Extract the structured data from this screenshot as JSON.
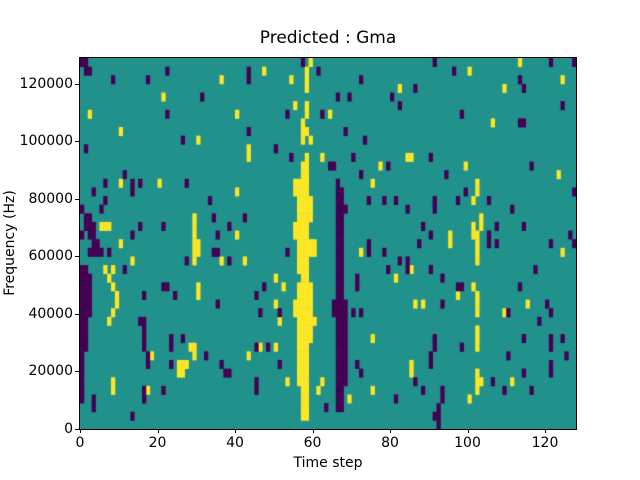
{
  "title": "Predicted : Gma",
  "axes": {
    "xlabel": "Time step",
    "ylabel": "Frequency (Hz)"
  },
  "chart_data": {
    "type": "heatmap",
    "title": "Predicted : Gma",
    "xlabel": "Time step",
    "ylabel": "Frequency (Hz)",
    "grid": {
      "cols": 128,
      "rows": 43
    },
    "x_range": [
      0,
      128
    ],
    "y_range": [
      0,
      129000
    ],
    "x_ticks": [
      0,
      20,
      40,
      60,
      80,
      100,
      120
    ],
    "y_ticks": [
      0,
      20000,
      40000,
      60000,
      80000,
      100000,
      120000
    ],
    "legend": "none",
    "colors": {
      "background": "#21918c",
      "low": "#440154",
      "high": "#fde725"
    },
    "value_legend": "cells are [time_step_col, freq_bin_row] with row 0 at 0 Hz; each row ≈ 3000 Hz",
    "runs": {
      "yellow": [
        [
          55,
          13,
          14
        ],
        [
          55,
          22,
          23
        ],
        [
          55,
          27,
          28
        ],
        [
          56,
          5,
          16
        ],
        [
          56,
          18,
          28
        ],
        [
          57,
          1,
          30
        ],
        [
          57,
          33,
          35
        ],
        [
          58,
          1,
          31
        ],
        [
          59,
          10,
          16
        ],
        [
          59,
          20,
          21
        ],
        [
          59,
          24,
          26
        ],
        [
          60,
          20,
          21
        ],
        [
          29,
          19,
          24
        ],
        [
          102,
          4,
          6
        ],
        [
          102,
          9,
          11
        ],
        [
          102,
          13,
          15
        ],
        [
          102,
          19,
          22
        ],
        [
          102,
          27,
          28
        ]
      ],
      "purple": [
        [
          0,
          3,
          18
        ],
        [
          1,
          9,
          18
        ],
        [
          2,
          13,
          17
        ],
        [
          3,
          20,
          23
        ],
        [
          4,
          20,
          21
        ],
        [
          66,
          2,
          28
        ],
        [
          67,
          2,
          27
        ],
        [
          68,
          5,
          14
        ]
      ]
    },
    "cells": {
      "yellow": [
        [
          2,
          36
        ],
        [
          5,
          23
        ],
        [
          6,
          23
        ],
        [
          7,
          23
        ],
        [
          6,
          18
        ],
        [
          8,
          18
        ],
        [
          7,
          17
        ],
        [
          8,
          16
        ],
        [
          9,
          15
        ],
        [
          9,
          14
        ],
        [
          8,
          13
        ],
        [
          7,
          12
        ],
        [
          8,
          5
        ],
        [
          8,
          4
        ],
        [
          10,
          34
        ],
        [
          10,
          28
        ],
        [
          10,
          21
        ],
        [
          13,
          19
        ],
        [
          17,
          4
        ],
        [
          18,
          8
        ],
        [
          20,
          28
        ],
        [
          21,
          38
        ],
        [
          25,
          6
        ],
        [
          25,
          7
        ],
        [
          26,
          6
        ],
        [
          26,
          7
        ],
        [
          27,
          7
        ],
        [
          28,
          9
        ],
        [
          29,
          9
        ],
        [
          29,
          8
        ],
        [
          30,
          15
        ],
        [
          30,
          16
        ],
        [
          30,
          20
        ],
        [
          30,
          21
        ],
        [
          30,
          33
        ],
        [
          36,
          40
        ],
        [
          36,
          19
        ],
        [
          40,
          36
        ],
        [
          40,
          27
        ],
        [
          40,
          22
        ],
        [
          42,
          19
        ],
        [
          43,
          8
        ],
        [
          43,
          32
        ],
        [
          43,
          31
        ],
        [
          46,
          9
        ],
        [
          47,
          41
        ],
        [
          50,
          17
        ],
        [
          50,
          14
        ],
        [
          50,
          9
        ],
        [
          51,
          12
        ],
        [
          52,
          16
        ],
        [
          53,
          5
        ],
        [
          54,
          40
        ],
        [
          55,
          37
        ],
        [
          58,
          34
        ],
        [
          58,
          36
        ],
        [
          58,
          37
        ],
        [
          58,
          39
        ],
        [
          58,
          40
        ],
        [
          58,
          41
        ],
        [
          59,
          42
        ],
        [
          59,
          33
        ],
        [
          60,
          12
        ],
        [
          61,
          4
        ],
        [
          62,
          5
        ],
        [
          62,
          31
        ],
        [
          64,
          36
        ],
        [
          69,
          3
        ],
        [
          72,
          20
        ],
        [
          75,
          28
        ],
        [
          75,
          10
        ],
        [
          75,
          4
        ],
        [
          77,
          30
        ],
        [
          81,
          17
        ],
        [
          82,
          39
        ],
        [
          84,
          31
        ],
        [
          85,
          18
        ],
        [
          85,
          7
        ],
        [
          85,
          6
        ],
        [
          85,
          31
        ],
        [
          86,
          14
        ],
        [
          88,
          14
        ],
        [
          95,
          22
        ],
        [
          95,
          21
        ],
        [
          97,
          15
        ],
        [
          99,
          30
        ],
        [
          100,
          3
        ],
        [
          100,
          41
        ],
        [
          101,
          16
        ],
        [
          101,
          22
        ],
        [
          101,
          23
        ],
        [
          101,
          26
        ],
        [
          103,
          5
        ],
        [
          103,
          23
        ],
        [
          103,
          24
        ],
        [
          106,
          35
        ],
        [
          109,
          39
        ],
        [
          109,
          13
        ],
        [
          111,
          5
        ],
        [
          113,
          42
        ],
        [
          115,
          14
        ],
        [
          123,
          29
        ],
        [
          124,
          40
        ],
        [
          124,
          20
        ]
      ],
      "purple": [
        [
          0,
          42
        ],
        [
          0,
          25
        ],
        [
          0,
          22
        ],
        [
          1,
          41
        ],
        [
          1,
          42
        ],
        [
          1,
          23
        ],
        [
          1,
          24
        ],
        [
          1,
          32
        ],
        [
          2,
          41
        ],
        [
          2,
          20
        ],
        [
          2,
          22
        ],
        [
          2,
          23
        ],
        [
          2,
          24
        ],
        [
          3,
          2
        ],
        [
          3,
          3
        ],
        [
          3,
          27
        ],
        [
          5,
          20
        ],
        [
          5,
          25
        ],
        [
          6,
          28
        ],
        [
          6,
          26
        ],
        [
          7,
          20
        ],
        [
          8,
          40
        ],
        [
          11,
          29
        ],
        [
          11,
          18
        ],
        [
          13,
          28
        ],
        [
          13,
          27
        ],
        [
          13,
          22
        ],
        [
          13,
          1
        ],
        [
          15,
          28
        ],
        [
          15,
          23
        ],
        [
          15,
          12
        ],
        [
          16,
          15
        ],
        [
          16,
          12
        ],
        [
          16,
          11
        ],
        [
          16,
          10
        ],
        [
          16,
          9
        ],
        [
          16,
          4
        ],
        [
          16,
          3
        ],
        [
          17,
          40
        ],
        [
          17,
          8
        ],
        [
          17,
          7
        ],
        [
          21,
          23
        ],
        [
          21,
          16
        ],
        [
          21,
          4
        ],
        [
          22,
          41
        ],
        [
          22,
          36
        ],
        [
          22,
          16
        ],
        [
          23,
          10
        ],
        [
          23,
          9
        ],
        [
          23,
          7
        ],
        [
          24,
          15
        ],
        [
          26,
          33
        ],
        [
          26,
          10
        ],
        [
          27,
          28
        ],
        [
          27,
          19
        ],
        [
          31,
          38
        ],
        [
          32,
          8
        ],
        [
          33,
          26
        ],
        [
          34,
          24
        ],
        [
          34,
          20
        ],
        [
          35,
          22
        ],
        [
          35,
          20
        ],
        [
          35,
          14
        ],
        [
          36,
          7
        ],
        [
          37,
          6
        ],
        [
          38,
          23
        ],
        [
          38,
          19
        ],
        [
          38,
          6
        ],
        [
          42,
          24
        ],
        [
          43,
          41
        ],
        [
          43,
          40
        ],
        [
          43,
          34
        ],
        [
          45,
          15
        ],
        [
          45,
          9
        ],
        [
          45,
          5
        ],
        [
          45,
          4
        ],
        [
          46,
          13
        ],
        [
          47,
          16
        ],
        [
          48,
          9
        ],
        [
          50,
          32
        ],
        [
          51,
          13
        ],
        [
          51,
          7
        ],
        [
          53,
          36
        ],
        [
          53,
          20
        ],
        [
          54,
          31
        ],
        [
          57,
          42
        ],
        [
          61,
          41
        ],
        [
          62,
          36
        ],
        [
          63,
          2
        ],
        [
          64,
          30
        ],
        [
          65,
          13
        ],
        [
          65,
          14
        ],
        [
          65,
          30
        ],
        [
          66,
          38
        ],
        [
          68,
          25
        ],
        [
          68,
          34
        ],
        [
          69,
          38
        ],
        [
          70,
          31
        ],
        [
          70,
          13
        ],
        [
          71,
          17
        ],
        [
          71,
          16
        ],
        [
          71,
          7
        ],
        [
          72,
          40
        ],
        [
          72,
          29
        ],
        [
          72,
          13
        ],
        [
          72,
          6
        ],
        [
          73,
          33
        ],
        [
          74,
          21
        ],
        [
          74,
          20
        ],
        [
          74,
          26
        ],
        [
          78,
          26
        ],
        [
          78,
          20
        ],
        [
          79,
          30
        ],
        [
          79,
          18
        ],
        [
          80,
          38
        ],
        [
          81,
          26
        ],
        [
          81,
          3
        ],
        [
          82,
          37
        ],
        [
          82,
          19
        ],
        [
          84,
          19
        ],
        [
          84,
          18
        ],
        [
          84,
          25
        ],
        [
          86,
          39
        ],
        [
          86,
          5
        ],
        [
          87,
          21
        ],
        [
          88,
          23
        ],
        [
          88,
          4
        ],
        [
          90,
          31
        ],
        [
          90,
          22
        ],
        [
          90,
          18
        ],
        [
          90,
          8
        ],
        [
          90,
          7
        ],
        [
          91,
          42
        ],
        [
          91,
          26
        ],
        [
          91,
          25
        ],
        [
          91,
          10
        ],
        [
          91,
          9
        ],
        [
          91,
          1
        ],
        [
          92,
          2
        ],
        [
          92,
          1
        ],
        [
          92,
          0
        ],
        [
          93,
          17
        ],
        [
          93,
          14
        ],
        [
          93,
          4
        ],
        [
          93,
          3
        ],
        [
          94,
          29
        ],
        [
          96,
          41
        ],
        [
          97,
          26
        ],
        [
          97,
          16
        ],
        [
          98,
          16
        ],
        [
          98,
          36
        ],
        [
          98,
          9
        ],
        [
          99,
          27
        ],
        [
          105,
          26
        ],
        [
          105,
          22
        ],
        [
          105,
          21
        ],
        [
          106,
          5
        ],
        [
          107,
          23
        ],
        [
          107,
          21
        ],
        [
          109,
          4
        ],
        [
          110,
          13
        ],
        [
          110,
          8
        ],
        [
          111,
          25
        ],
        [
          113,
          40
        ],
        [
          113,
          35
        ],
        [
          113,
          16
        ],
        [
          114,
          35
        ],
        [
          114,
          39
        ],
        [
          114,
          23
        ],
        [
          114,
          10
        ],
        [
          114,
          6
        ],
        [
          116,
          30
        ],
        [
          116,
          4
        ],
        [
          117,
          18
        ],
        [
          118,
          12
        ],
        [
          120,
          14
        ],
        [
          121,
          42
        ],
        [
          121,
          21
        ],
        [
          121,
          13
        ],
        [
          121,
          10
        ],
        [
          121,
          9
        ],
        [
          121,
          7
        ],
        [
          121,
          6
        ],
        [
          124,
          37
        ],
        [
          124,
          10
        ],
        [
          125,
          8
        ],
        [
          126,
          22
        ],
        [
          127,
          21
        ],
        [
          127,
          27
        ],
        [
          127,
          42
        ]
      ]
    }
  }
}
